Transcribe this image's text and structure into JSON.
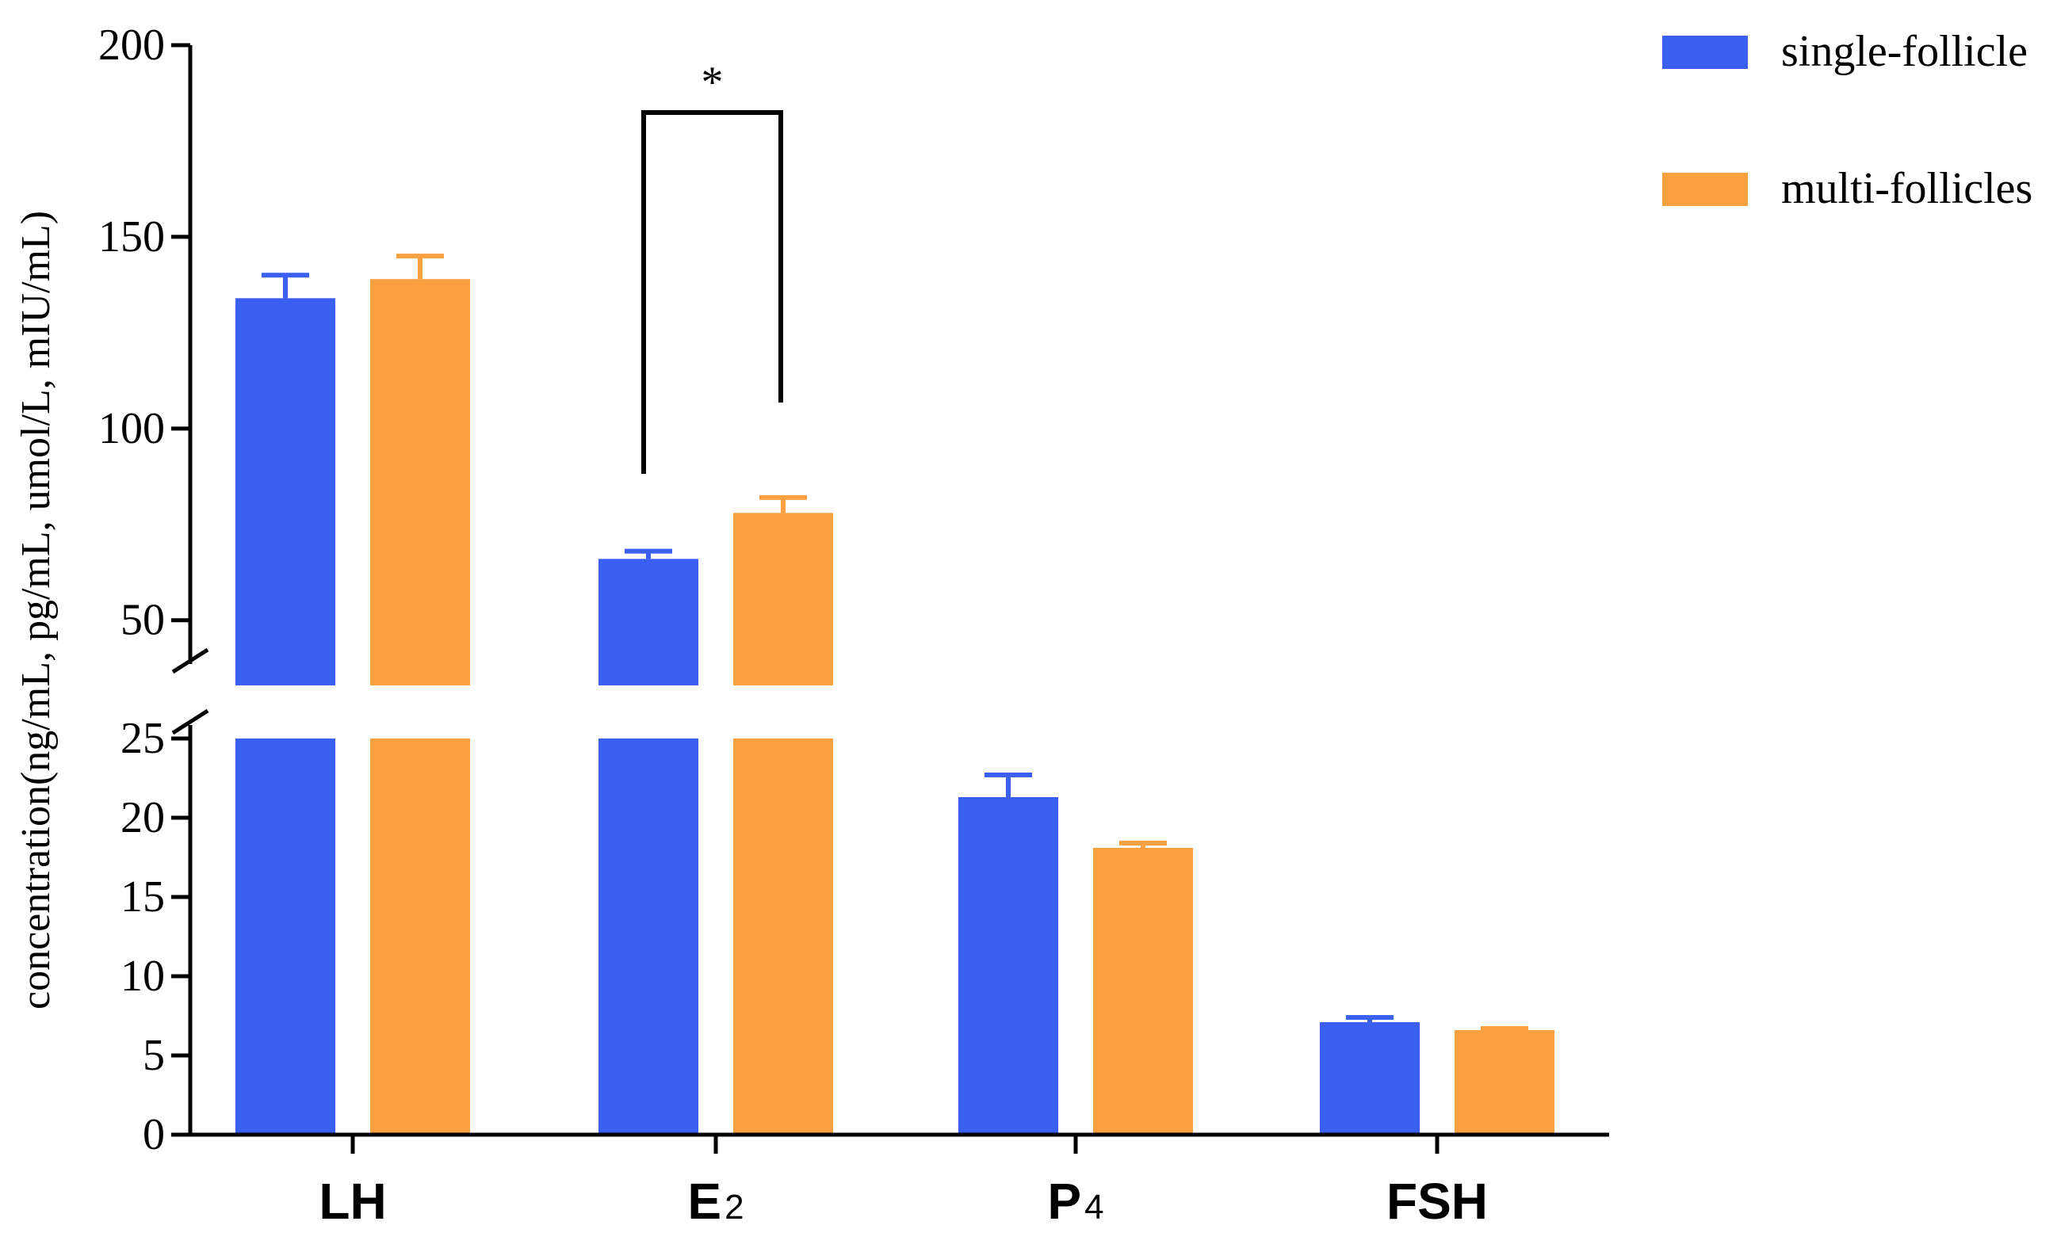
{
  "chart_data": {
    "type": "bar",
    "title": "",
    "xlabel": "",
    "ylabel": "concentration(ng/mL, pg/mL, umol/L, mIU/mL)",
    "categories": [
      {
        "main": "LH",
        "sub": ""
      },
      {
        "main": "E",
        "sub": "2"
      },
      {
        "main": "P",
        "sub": "4"
      },
      {
        "main": "FSH",
        "sub": ""
      }
    ],
    "series": [
      {
        "name": "single-follicle",
        "color": "#3b5ff0",
        "values": [
          134,
          66,
          21.3,
          7.1
        ],
        "errors": [
          6,
          2,
          1.4,
          0.3
        ]
      },
      {
        "name": "multi-follicles",
        "color": "#f9a040",
        "values": [
          139,
          78,
          18.1,
          6.6
        ],
        "errors": [
          6,
          4,
          0.3,
          0.1
        ]
      }
    ],
    "axis_break": {
      "lower_range": [
        0,
        25
      ],
      "upper_range": [
        33,
        200
      ]
    },
    "lower_ticks": [
      "0",
      "5",
      "10",
      "15",
      "20",
      "25"
    ],
    "upper_ticks": [
      "50",
      "100",
      "150",
      "200"
    ],
    "legend_position": "top-right",
    "grid": false,
    "annotations": [
      {
        "text": "*",
        "category": "E2",
        "type": "significance-bracket"
      }
    ]
  }
}
